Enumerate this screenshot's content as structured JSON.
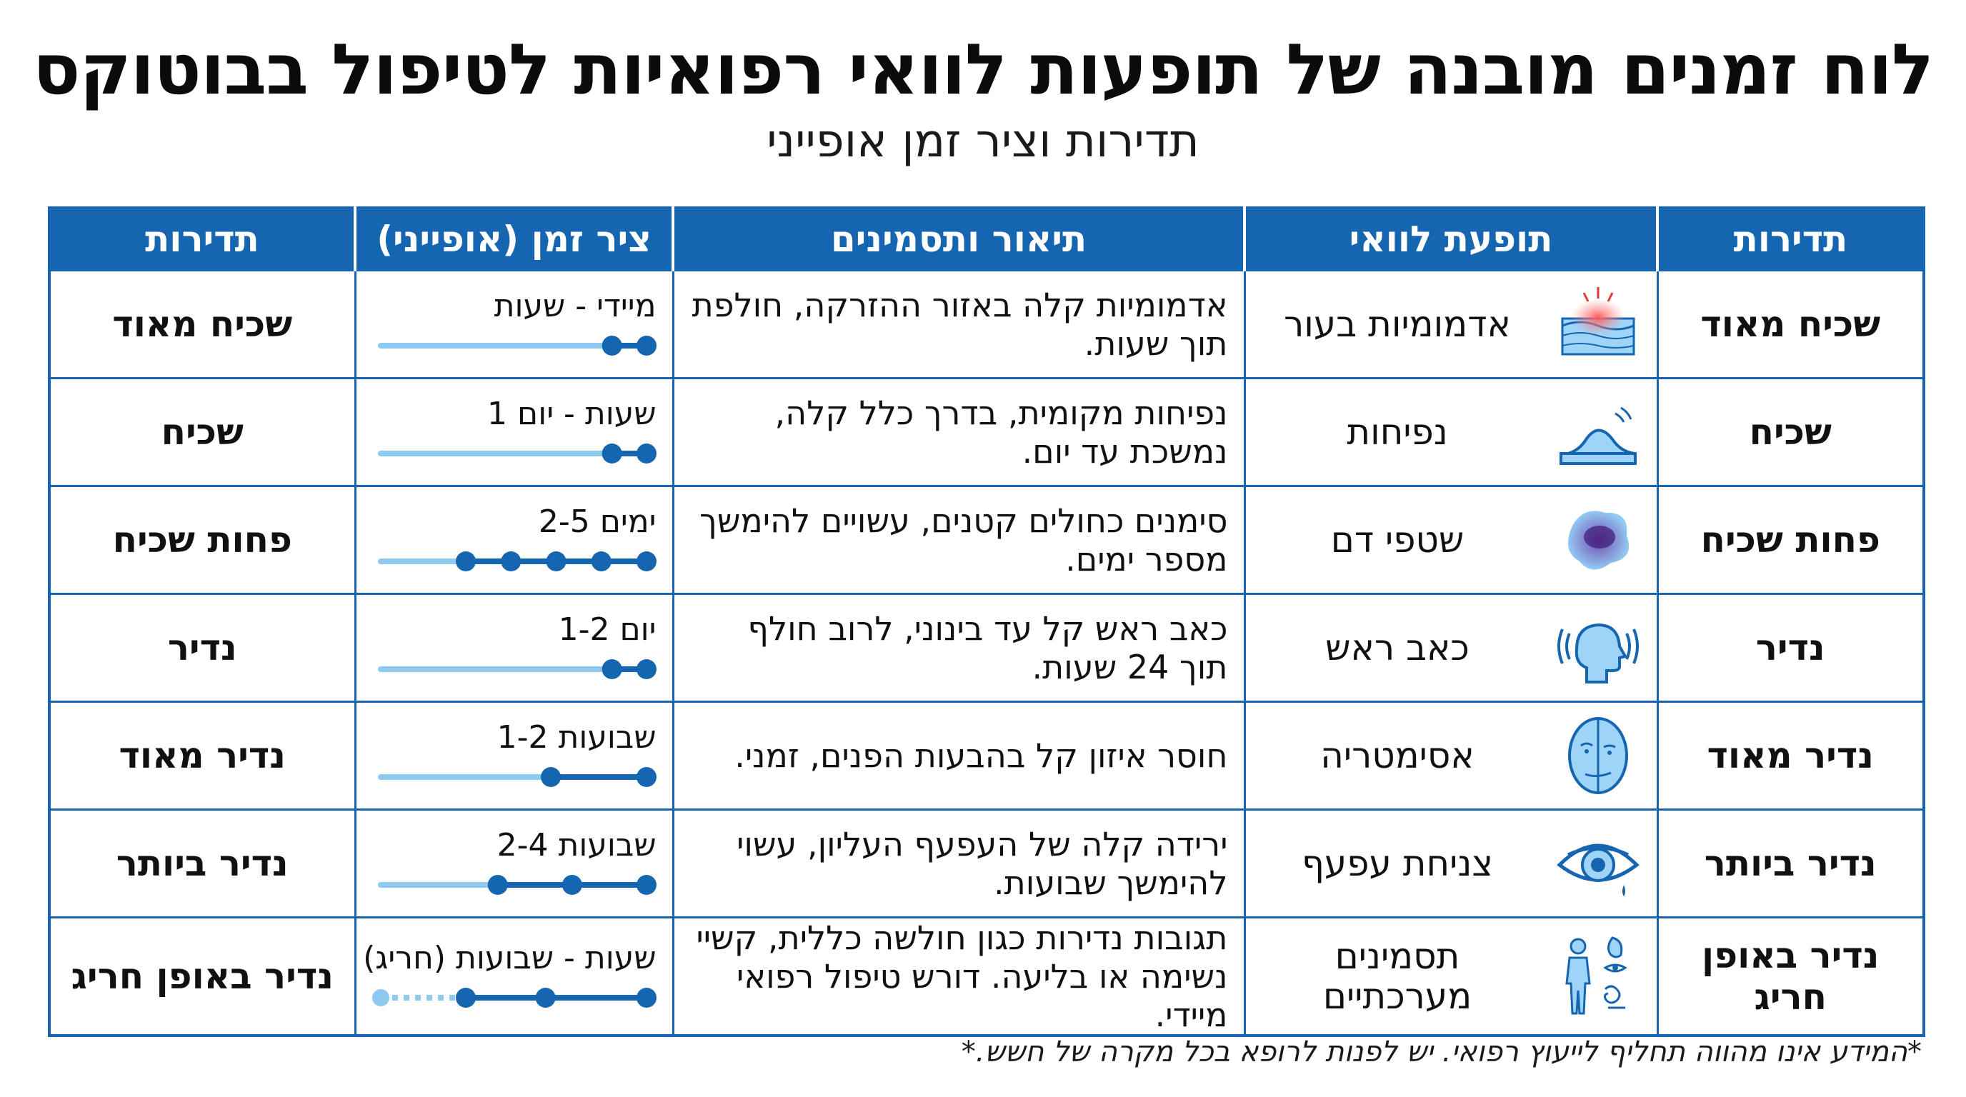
{
  "title": "לוח זמנים מובנה של תופעות לוואי רפואיות לטיפול בבוטוקס",
  "subtitle": "תדירות וציר זמן אופייני",
  "headers": {
    "frequency_right": "תדירות",
    "side_effect": "תופעת לוואי",
    "description": "תיאור ותסמינים",
    "timeline": "ציר זמן (אופייני)",
    "frequency_left": "תדירות"
  },
  "colors": {
    "primary": "#1565b0",
    "timeline_track": "#8ec9f0",
    "timeline_line": "#1565b0",
    "timeline_dot": "#1565b0"
  },
  "rows": [
    {
      "frequency": "שכיח מאוד",
      "icon": "skin-redness-icon",
      "effect": "אדמומיות בעור",
      "description": "אדמומיות קלה באזור ההזרקה, חולפת תוך שעות.",
      "timeline_label": "מיידי - שעות",
      "timeline_dots": [
        1.0,
        0.87
      ],
      "dotted_start": null
    },
    {
      "frequency": "שכיח",
      "icon": "swelling-icon",
      "effect": "נפיחות",
      "description": "נפיחות מקומית, בדרך כלל קלה, נמשכת עד יום.",
      "timeline_label": "שעות - יום 1",
      "timeline_dots": [
        1.0,
        0.87
      ],
      "dotted_start": null
    },
    {
      "frequency": "פחות שכיח",
      "icon": "bruise-icon",
      "effect": "שטפי דם",
      "description": "סימנים כחולים קטנים, עשויים להימשך מספר ימים.",
      "timeline_label": "ימים 2-5",
      "timeline_dots": [
        1.0,
        0.83,
        0.66,
        0.49,
        0.32
      ],
      "dotted_start": null
    },
    {
      "frequency": "נדיר",
      "icon": "headache-icon",
      "effect": "כאב ראש",
      "description": "כאב ראש קל עד בינוני, לרוב חולף תוך 24 שעות.",
      "timeline_label": "יום 1-2",
      "timeline_dots": [
        1.0,
        0.87
      ],
      "dotted_start": null
    },
    {
      "frequency": "נדיר מאוד",
      "icon": "face-asymmetry-icon",
      "effect": "אסימטריה",
      "description": "חוסר איזון קל בהבעות הפנים, זמני.",
      "timeline_label": "שבועות 1-2",
      "timeline_dots": [
        1.0,
        0.64
      ],
      "dotted_start": null
    },
    {
      "frequency": "נדיר ביותר",
      "icon": "drooping-eyelid-icon",
      "effect": "צניחת עפעף",
      "description": "ירידה קלה של העפעף העליון, עשוי להימשך שבועות.",
      "timeline_label": "שבועות 2-4",
      "timeline_dots": [
        1.0,
        0.72,
        0.44
      ],
      "dotted_start": null
    },
    {
      "frequency": "נדיר באופן חריג",
      "icon": "systemic-body-icon",
      "effect": "תסמינים מערכתיים",
      "description": "תגובות נדירות כגון חולשה כללית, קשיי נשימה או בליעה. דורש טיפול רפואי מיידי.",
      "timeline_label": "שעות - שבועות (חריג)",
      "timeline_dots": [
        1.0,
        0.62,
        0.32
      ],
      "dotted_start": 0.0
    }
  ],
  "footnote": "*המידע אינו מהווה תחליף לייעוץ רפואי. יש לפנות לרופא בכל מקרה של חשש.*"
}
